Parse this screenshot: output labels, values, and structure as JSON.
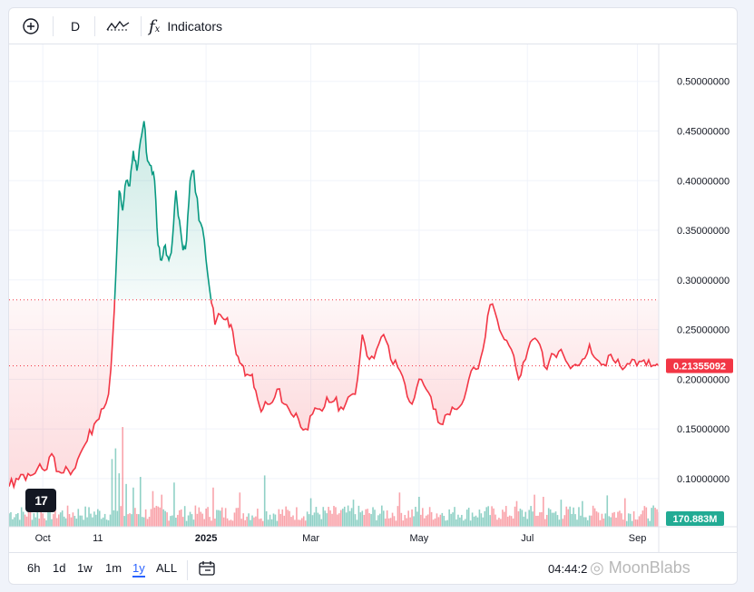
{
  "toolbar": {
    "interval": "D",
    "indicators_label": "Indicators"
  },
  "chart_data": {
    "type": "area",
    "baseline": 0.28,
    "last_price_label": "0.21355092",
    "volume_label": "170.883M",
    "y_ticks": [
      "0.50000000",
      "0.45000000",
      "0.40000000",
      "0.35000000",
      "0.30000000",
      "0.25000000",
      "0.20000000",
      "0.15000000",
      "0.10000000"
    ],
    "y_tick_values": [
      0.5,
      0.45,
      0.4,
      0.35,
      0.3,
      0.25,
      0.2,
      0.15,
      0.1
    ],
    "x_labels": [
      "Oct",
      "11",
      "2025",
      "Mar",
      "May",
      "Jul",
      "Sep"
    ],
    "x_label_dates": [
      "2024-10-01",
      "2024-11-01",
      "2025-01-01",
      "2025-03-01",
      "2025-05-01",
      "2025-07-01",
      "2025-09-01"
    ],
    "ylim": [
      0.0515,
      0.5372
    ],
    "xlim": [
      "2024-09-12",
      "2025-09-13"
    ],
    "colors": {
      "up": "#089981",
      "down": "#f23645"
    },
    "price": {
      "dates": [
        "2024-09-12",
        "2024-09-16",
        "2024-09-20",
        "2024-09-24",
        "2024-09-28",
        "2024-10-02",
        "2024-10-06",
        "2024-10-10",
        "2024-10-14",
        "2024-10-18",
        "2024-10-22",
        "2024-10-26",
        "2024-10-30",
        "2024-11-03",
        "2024-11-07",
        "2024-11-09",
        "2024-11-11",
        "2024-11-13",
        "2024-11-15",
        "2024-11-17",
        "2024-11-19",
        "2024-11-21",
        "2024-11-23",
        "2024-11-25",
        "2024-11-27",
        "2024-11-29",
        "2024-12-01",
        "2024-12-03",
        "2024-12-05",
        "2024-12-07",
        "2024-12-09",
        "2024-12-11",
        "2024-12-13",
        "2024-12-15",
        "2024-12-17",
        "2024-12-19",
        "2024-12-21",
        "2024-12-23",
        "2024-12-25",
        "2024-12-28",
        "2024-12-31",
        "2025-01-03",
        "2025-01-06",
        "2025-01-09",
        "2025-01-12",
        "2025-01-15",
        "2025-01-18",
        "2025-01-21",
        "2025-01-24",
        "2025-01-27",
        "2025-01-30",
        "2025-02-02",
        "2025-02-06",
        "2025-02-10",
        "2025-02-14",
        "2025-02-18",
        "2025-02-22",
        "2025-02-26",
        "2025-03-02",
        "2025-03-06",
        "2025-03-10",
        "2025-03-14",
        "2025-03-18",
        "2025-03-22",
        "2025-03-26",
        "2025-03-30",
        "2025-04-03",
        "2025-04-07",
        "2025-04-11",
        "2025-04-15",
        "2025-04-19",
        "2025-04-23",
        "2025-04-27",
        "2025-05-01",
        "2025-05-05",
        "2025-05-09",
        "2025-05-13",
        "2025-05-17",
        "2025-05-21",
        "2025-05-25",
        "2025-05-29",
        "2025-06-02",
        "2025-06-06",
        "2025-06-10",
        "2025-06-14",
        "2025-06-18",
        "2025-06-22",
        "2025-06-26",
        "2025-06-30",
        "2025-07-04",
        "2025-07-08",
        "2025-07-12",
        "2025-07-16",
        "2025-07-20",
        "2025-07-24",
        "2025-07-28",
        "2025-08-01",
        "2025-08-05",
        "2025-08-09",
        "2025-08-13",
        "2025-08-17",
        "2025-08-21",
        "2025-08-25",
        "2025-08-29",
        "2025-09-02",
        "2025-09-06",
        "2025-09-10",
        "2025-09-13"
      ],
      "values": [
        0.092,
        0.1,
        0.104,
        0.103,
        0.11,
        0.108,
        0.125,
        0.107,
        0.112,
        0.108,
        0.125,
        0.138,
        0.155,
        0.17,
        0.185,
        0.23,
        0.3,
        0.39,
        0.37,
        0.4,
        0.395,
        0.43,
        0.41,
        0.44,
        0.46,
        0.42,
        0.415,
        0.4,
        0.335,
        0.32,
        0.335,
        0.32,
        0.34,
        0.39,
        0.36,
        0.33,
        0.34,
        0.4,
        0.41,
        0.36,
        0.34,
        0.29,
        0.255,
        0.265,
        0.26,
        0.255,
        0.225,
        0.215,
        0.205,
        0.205,
        0.18,
        0.17,
        0.175,
        0.19,
        0.175,
        0.165,
        0.16,
        0.15,
        0.165,
        0.17,
        0.182,
        0.178,
        0.172,
        0.182,
        0.185,
        0.245,
        0.22,
        0.23,
        0.245,
        0.22,
        0.212,
        0.195,
        0.175,
        0.2,
        0.19,
        0.17,
        0.155,
        0.165,
        0.17,
        0.175,
        0.2,
        0.21,
        0.23,
        0.275,
        0.26,
        0.24,
        0.23,
        0.2,
        0.22,
        0.24,
        0.235,
        0.21,
        0.225,
        0.23,
        0.215,
        0.215,
        0.22,
        0.235,
        0.22,
        0.215,
        0.225,
        0.22,
        0.212,
        0.22,
        0.218,
        0.214,
        0.214,
        0.21355
      ]
    },
    "volume": {
      "dates": [
        "2024-11-09",
        "2024-11-11",
        "2024-11-13",
        "2024-11-15",
        "2024-11-17",
        "2024-11-21",
        "2024-11-25",
        "2024-12-02",
        "2024-12-07",
        "2024-12-14",
        "2025-01-05",
        "2025-01-20",
        "2025-02-03",
        "2025-03-01",
        "2025-03-25",
        "2025-04-20",
        "2025-05-01",
        "2025-06-25",
        "2025-07-05",
        "2025-07-10",
        "2025-07-20",
        "2025-08-01",
        "2025-08-15",
        "2025-08-25"
      ],
      "values": [
        95,
        110,
        75,
        140,
        60,
        55,
        70,
        50,
        45,
        62,
        55,
        48,
        72,
        40,
        38,
        48,
        42,
        36,
        45,
        42,
        38,
        36,
        44,
        40
      ]
    }
  }
}
